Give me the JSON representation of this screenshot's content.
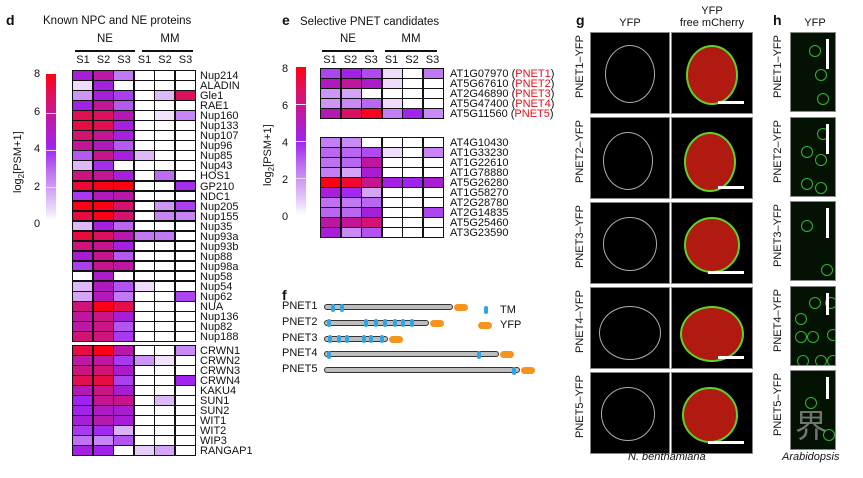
{
  "panel_d": {
    "label": "d",
    "title": "Known NPC and NE proteins",
    "groups": [
      "NE",
      "MM"
    ],
    "columns": [
      "S1",
      "S2",
      "S3",
      "S1",
      "S2",
      "S3"
    ],
    "colorbar": {
      "label_prefix": "log",
      "label_sub": "2",
      "label_suffix": "[PSM+1]",
      "ticks": [
        "8",
        "6",
        "4",
        "2",
        "0"
      ],
      "range": [
        0,
        8
      ]
    },
    "block1_rows": [
      {
        "name": "Nup214",
        "values": [
          4.5,
          5.5,
          2.5,
          0,
          0,
          0
        ]
      },
      {
        "name": "ALADIN",
        "values": [
          1,
          4.3,
          0,
          0,
          0,
          0
        ]
      },
      {
        "name": "Gle1",
        "values": [
          2,
          4.4,
          3.5,
          0,
          1.5,
          6.8
        ]
      },
      {
        "name": "RAE1",
        "values": [
          4.2,
          5.8,
          3,
          0,
          0,
          0
        ]
      },
      {
        "name": "Nup160",
        "values": [
          7,
          6.8,
          5.2,
          0,
          0.8,
          2.3
        ]
      },
      {
        "name": "Nup133",
        "values": [
          7.2,
          7,
          4.3,
          0,
          0,
          0
        ]
      },
      {
        "name": "Nup107",
        "values": [
          6.5,
          5.8,
          4.3,
          0,
          0,
          0
        ]
      },
      {
        "name": "Nup96",
        "values": [
          5.8,
          5,
          3,
          0,
          0,
          0
        ]
      },
      {
        "name": "Nup85",
        "values": [
          3,
          6,
          4.3,
          1.5,
          0,
          0
        ]
      },
      {
        "name": "Nup43",
        "values": [
          1.5,
          3.8,
          0,
          0,
          0,
          0
        ]
      },
      {
        "name": "HOS1",
        "values": [
          6.2,
          5.8,
          4.4,
          0,
          2.7,
          0
        ]
      },
      {
        "name": "GP210",
        "values": [
          7.4,
          7.9,
          7.9,
          0,
          0,
          3.8
        ]
      },
      {
        "name": "NDC1",
        "values": [
          3.6,
          5,
          5.4,
          0,
          0,
          0
        ]
      },
      {
        "name": "Nup205",
        "values": [
          7.9,
          7.9,
          6.5,
          0,
          2,
          3.5
        ]
      },
      {
        "name": "Nup155",
        "values": [
          7.3,
          7.9,
          6.5,
          0,
          2.3,
          2.3
        ]
      },
      {
        "name": "Nup35",
        "values": [
          1.5,
          4.3,
          2.8,
          0,
          0,
          0
        ]
      },
      {
        "name": "Nup93a",
        "values": [
          7.3,
          6.8,
          5.3,
          2.5,
          2.5,
          0
        ]
      },
      {
        "name": "Nup93b",
        "values": [
          6.3,
          6,
          4.3,
          0,
          0,
          0
        ]
      },
      {
        "name": "Nup88",
        "values": [
          4.6,
          6,
          3,
          0,
          0,
          0
        ]
      },
      {
        "name": "Nup98a",
        "values": [
          3.5,
          6,
          5.6,
          0,
          0,
          0
        ]
      },
      {
        "name": "Nup58",
        "values": [
          0,
          4.8,
          0,
          0,
          0,
          0
        ]
      },
      {
        "name": "Nup54",
        "values": [
          1.5,
          5,
          3.1,
          1,
          0,
          0
        ]
      },
      {
        "name": "Nup62",
        "values": [
          1.8,
          5.1,
          2.5,
          0,
          0,
          3.4
        ]
      },
      {
        "name": "NUA",
        "values": [
          6.3,
          7.9,
          7.1,
          0,
          0,
          0
        ]
      },
      {
        "name": "Nup136",
        "values": [
          5.6,
          6.1,
          4.5,
          0,
          0,
          0
        ]
      },
      {
        "name": "Nup82",
        "values": [
          5.5,
          6.1,
          3.1,
          0,
          0,
          0
        ]
      },
      {
        "name": "Nup188",
        "values": [
          6.4,
          6.3,
          3.6,
          0,
          0,
          0
        ]
      }
    ],
    "block2_rows": [
      {
        "name": "CRWN1",
        "values": [
          7.2,
          7.9,
          5.4,
          0,
          0,
          2.2
        ]
      },
      {
        "name": "CRWN2",
        "values": [
          5.5,
          5.6,
          3.6,
          2,
          0.8,
          0
        ]
      },
      {
        "name": "CRWN3",
        "values": [
          6.2,
          6.4,
          4.8,
          0,
          0,
          0
        ]
      },
      {
        "name": "CRWN4",
        "values": [
          7,
          7.2,
          3.5,
          0,
          0,
          4
        ]
      },
      {
        "name": "KAKU4",
        "values": [
          5.2,
          6.1,
          4.6,
          0,
          0,
          0
        ]
      },
      {
        "name": "SUN1",
        "values": [
          4,
          5.9,
          6,
          0,
          1.5,
          0
        ]
      },
      {
        "name": "SUN2",
        "values": [
          4.1,
          4.9,
          4.6,
          0,
          0,
          0
        ]
      },
      {
        "name": "WIT1",
        "values": [
          4.5,
          5.3,
          4.5,
          0,
          0,
          0
        ]
      },
      {
        "name": "WIT2",
        "values": [
          3.6,
          3.9,
          1.6,
          0,
          0,
          0
        ]
      },
      {
        "name": "WIP3",
        "values": [
          2.6,
          2.3,
          3.1,
          0,
          0,
          0
        ]
      },
      {
        "name": "RANGAP1",
        "values": [
          4.3,
          4.1,
          0,
          1.2,
          1.8,
          0
        ]
      }
    ]
  },
  "panel_e": {
    "label": "e",
    "title": "Selective PNET candidates",
    "groups": [
      "NE",
      "MM"
    ],
    "columns": [
      "S1",
      "S2",
      "S3",
      "S1",
      "S2",
      "S3"
    ],
    "colorbar": {
      "label_prefix": "log",
      "label_sub": "2",
      "label_suffix": "[PSM+1]",
      "ticks": [
        "8",
        "6",
        "4",
        "2",
        "0"
      ],
      "range": [
        0,
        8
      ]
    },
    "block1_rows": [
      {
        "name": "AT1G07970",
        "tag": "PNET1",
        "values": [
          3.4,
          4.2,
          3.3,
          1,
          0,
          2.5
        ]
      },
      {
        "name": "AT5G67610",
        "tag": "PNET2",
        "values": [
          5,
          5.7,
          4.8,
          1,
          0,
          0
        ]
      },
      {
        "name": "AT2G46890",
        "tag": "PNET3",
        "values": [
          2,
          1.8,
          0,
          0,
          0,
          0
        ]
      },
      {
        "name": "AT5G47400",
        "tag": "PNET4",
        "values": [
          2,
          2.2,
          2.8,
          1,
          0,
          0
        ]
      },
      {
        "name": "AT5G11560",
        "tag": "PNET5",
        "values": [
          5.2,
          6.7,
          7.8,
          2.4,
          4,
          2.2
        ]
      }
    ],
    "block2_rows": [
      {
        "name": "AT4G10430",
        "values": [
          2.4,
          2.2,
          0,
          0,
          0,
          0
        ]
      },
      {
        "name": "AT1G33230",
        "values": [
          2.8,
          2.8,
          3.3,
          1,
          0,
          2.3
        ]
      },
      {
        "name": "AT1G22610",
        "values": [
          2.6,
          2.8,
          5.6,
          0,
          0,
          0
        ]
      },
      {
        "name": "AT1G78880",
        "values": [
          2.4,
          1.8,
          4.6,
          0,
          0,
          0
        ]
      },
      {
        "name": "AT5G26280",
        "values": [
          7.9,
          7.5,
          5.9,
          4.3,
          4,
          4.6
        ]
      },
      {
        "name": "AT1G58270",
        "values": [
          4.4,
          3.9,
          1.8,
          0,
          0,
          0
        ]
      },
      {
        "name": "AT2G28780",
        "values": [
          2.6,
          2.5,
          2.8,
          0,
          0,
          0
        ]
      },
      {
        "name": "AT2G14835",
        "values": [
          2.8,
          2.8,
          4.4,
          0,
          0,
          3.4
        ]
      },
      {
        "name": "AT5G25460",
        "values": [
          5.6,
          5.8,
          6.4,
          0,
          0,
          0
        ]
      },
      {
        "name": "AT3G23590",
        "values": [
          4.5,
          2.2,
          3.1,
          0,
          0,
          0
        ]
      }
    ]
  },
  "panel_f": {
    "label": "f",
    "legend": [
      {
        "name": "TM",
        "color": "#2ea6e6"
      },
      {
        "name": "YFP",
        "color": "#f7941d"
      }
    ],
    "constructs": [
      {
        "name": "PNET1",
        "length_rel": 0.53,
        "tm_positions": [
          0.05,
          0.12
        ]
      },
      {
        "name": "PNET2",
        "length_rel": 0.43,
        "tm_positions": [
          0.02,
          0.38,
          0.47,
          0.56,
          0.66,
          0.74,
          0.82
        ]
      },
      {
        "name": "PNET3",
        "length_rel": 0.26,
        "tm_positions": [
          0.05,
          0.2,
          0.32,
          0.6,
          0.7,
          0.88
        ]
      },
      {
        "name": "PNET4",
        "length_rel": 0.72,
        "tm_positions": [
          0.01,
          0.88
        ]
      },
      {
        "name": "PNET5",
        "length_rel": 0.81,
        "tm_positions": [
          0.96
        ]
      }
    ]
  },
  "panel_g": {
    "label": "g",
    "col_headers": [
      "YFP",
      "YFP\nfree mCherry"
    ],
    "col_header_1": "YFP",
    "col_header_2_line1": "YFP",
    "col_header_2_line2": "free mCherry",
    "rows": [
      "PNET1–YFP",
      "PNET2–YFP",
      "PNET3–YFP",
      "PNET4–YFP",
      "PNET5–YFP"
    ],
    "caption": "N. benthamiana",
    "colors": {
      "yfp": "#5fd12a",
      "mcherry": "#b01a10",
      "gray": "#d8d8d8"
    }
  },
  "panel_h": {
    "label": "h",
    "col_header": "YFP",
    "rows": [
      "PNET1–YFP",
      "PNET2–YFP",
      "PNET3–YFP",
      "PNET4–YFP",
      "PNET5–YFP"
    ],
    "caption": "Arabidopsis",
    "watermark": "界"
  },
  "colors": {
    "accent_red": "#e8101a",
    "heat_low": "#ffffff",
    "heat_mid": "#a023ef",
    "heat_high": "#ff0010"
  }
}
